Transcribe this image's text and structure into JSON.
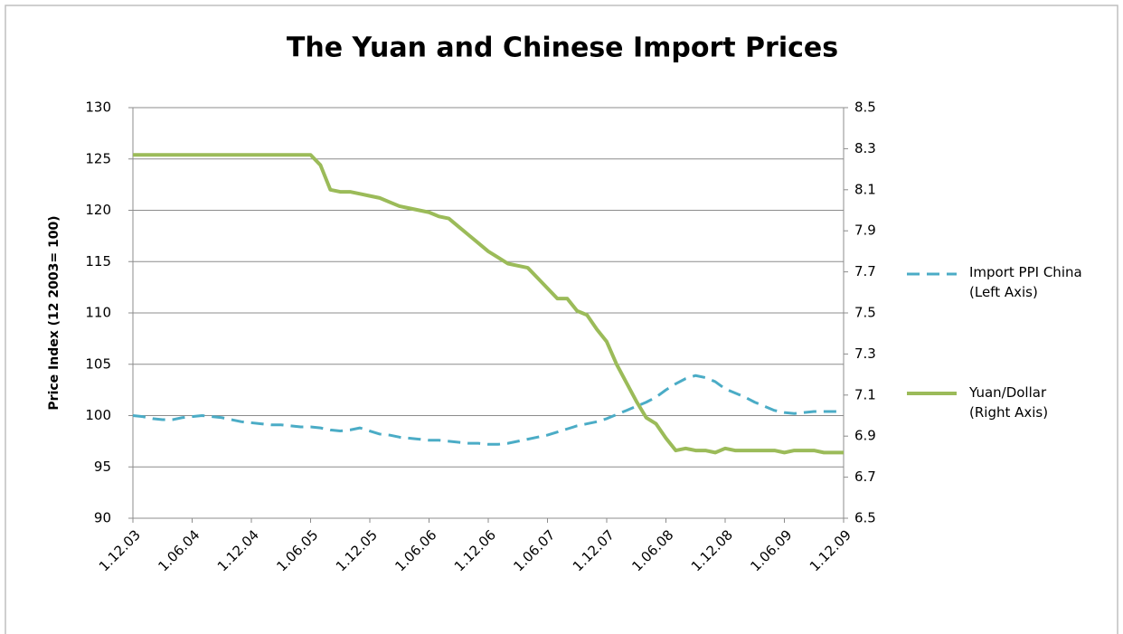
{
  "chart_data": {
    "type": "line",
    "title": "The Yuan and Chinese Import Prices",
    "y_label": "Price Index (12 2003= 100)",
    "categories": [
      "1.12.03",
      null,
      null,
      null,
      null,
      null,
      "1.06.04",
      null,
      null,
      null,
      null,
      null,
      "1.12.04",
      null,
      null,
      null,
      null,
      null,
      "1.06.05",
      null,
      null,
      null,
      null,
      null,
      "1.12.05",
      null,
      null,
      null,
      null,
      null,
      "1.06.06",
      null,
      null,
      null,
      null,
      null,
      "1.12.06",
      null,
      null,
      null,
      null,
      null,
      "1.06.07",
      null,
      null,
      null,
      null,
      null,
      "1.12.07",
      null,
      null,
      null,
      null,
      null,
      "1.06.08",
      null,
      null,
      null,
      null,
      null,
      "1.12.08",
      null,
      null,
      null,
      null,
      null,
      "1.06.09",
      null,
      null,
      null,
      null,
      null,
      "1.12.09"
    ],
    "series": [
      {
        "name": "Import PPI China (Left Axis)",
        "color": "#4bacc6",
        "dash": true,
        "axis": "y",
        "values": [
          100,
          99.9,
          99.7,
          99.6,
          99.6,
          99.8,
          99.9,
          100,
          99.9,
          99.8,
          99.6,
          99.4,
          99.3,
          99.2,
          99.1,
          99.1,
          99,
          98.9,
          98.9,
          98.8,
          98.6,
          98.5,
          98.6,
          98.8,
          98.5,
          98.2,
          98.1,
          97.9,
          97.8,
          97.7,
          97.6,
          97.6,
          97.5,
          97.4,
          97.3,
          97.3,
          97.2,
          97.2,
          97.3,
          97.5,
          97.7,
          97.9,
          98.1,
          98.4,
          98.7,
          99,
          99.2,
          99.4,
          99.7,
          100.1,
          100.5,
          100.9,
          101.3,
          101.8,
          102.5,
          103.1,
          103.6,
          103.9,
          103.7,
          103.3,
          102.6,
          102.2,
          101.8,
          101.3,
          100.9,
          100.5,
          100.3,
          100.2,
          100.3,
          100.4,
          100.4,
          100.4,
          100.4
        ]
      },
      {
        "name": "Yuan/Dollar (Right Axis)",
        "color": "#9bbb59",
        "dash": false,
        "axis": "y2",
        "values": [
          8.27,
          8.27,
          8.27,
          8.27,
          8.27,
          8.27,
          8.27,
          8.27,
          8.27,
          8.27,
          8.27,
          8.27,
          8.27,
          8.27,
          8.27,
          8.27,
          8.27,
          8.27,
          8.27,
          8.22,
          8.1,
          8.09,
          8.09,
          8.08,
          8.07,
          8.06,
          8.04,
          8.02,
          8.01,
          8.0,
          7.99,
          7.97,
          7.96,
          7.92,
          7.88,
          7.84,
          7.8,
          7.77,
          7.74,
          7.73,
          7.72,
          7.67,
          7.62,
          7.57,
          7.57,
          7.51,
          7.49,
          7.42,
          7.36,
          7.25,
          7.16,
          7.07,
          6.99,
          6.96,
          6.89,
          6.83,
          6.84,
          6.83,
          6.83,
          6.82,
          6.84,
          6.83,
          6.83,
          6.83,
          6.83,
          6.83,
          6.82,
          6.83,
          6.83,
          6.83,
          6.82,
          6.82,
          6.82
        ]
      }
    ],
    "ylim": [
      90,
      130
    ],
    "yticks": [
      90,
      95,
      100,
      105,
      110,
      115,
      120,
      125,
      130
    ],
    "y2lim": [
      6.5,
      8.5
    ],
    "y2ticks": [
      6.5,
      6.7,
      6.9,
      7.1,
      7.3,
      7.5,
      7.7,
      7.9,
      8.1,
      8.3,
      8.5
    ],
    "grid": true,
    "legend": "right"
  }
}
